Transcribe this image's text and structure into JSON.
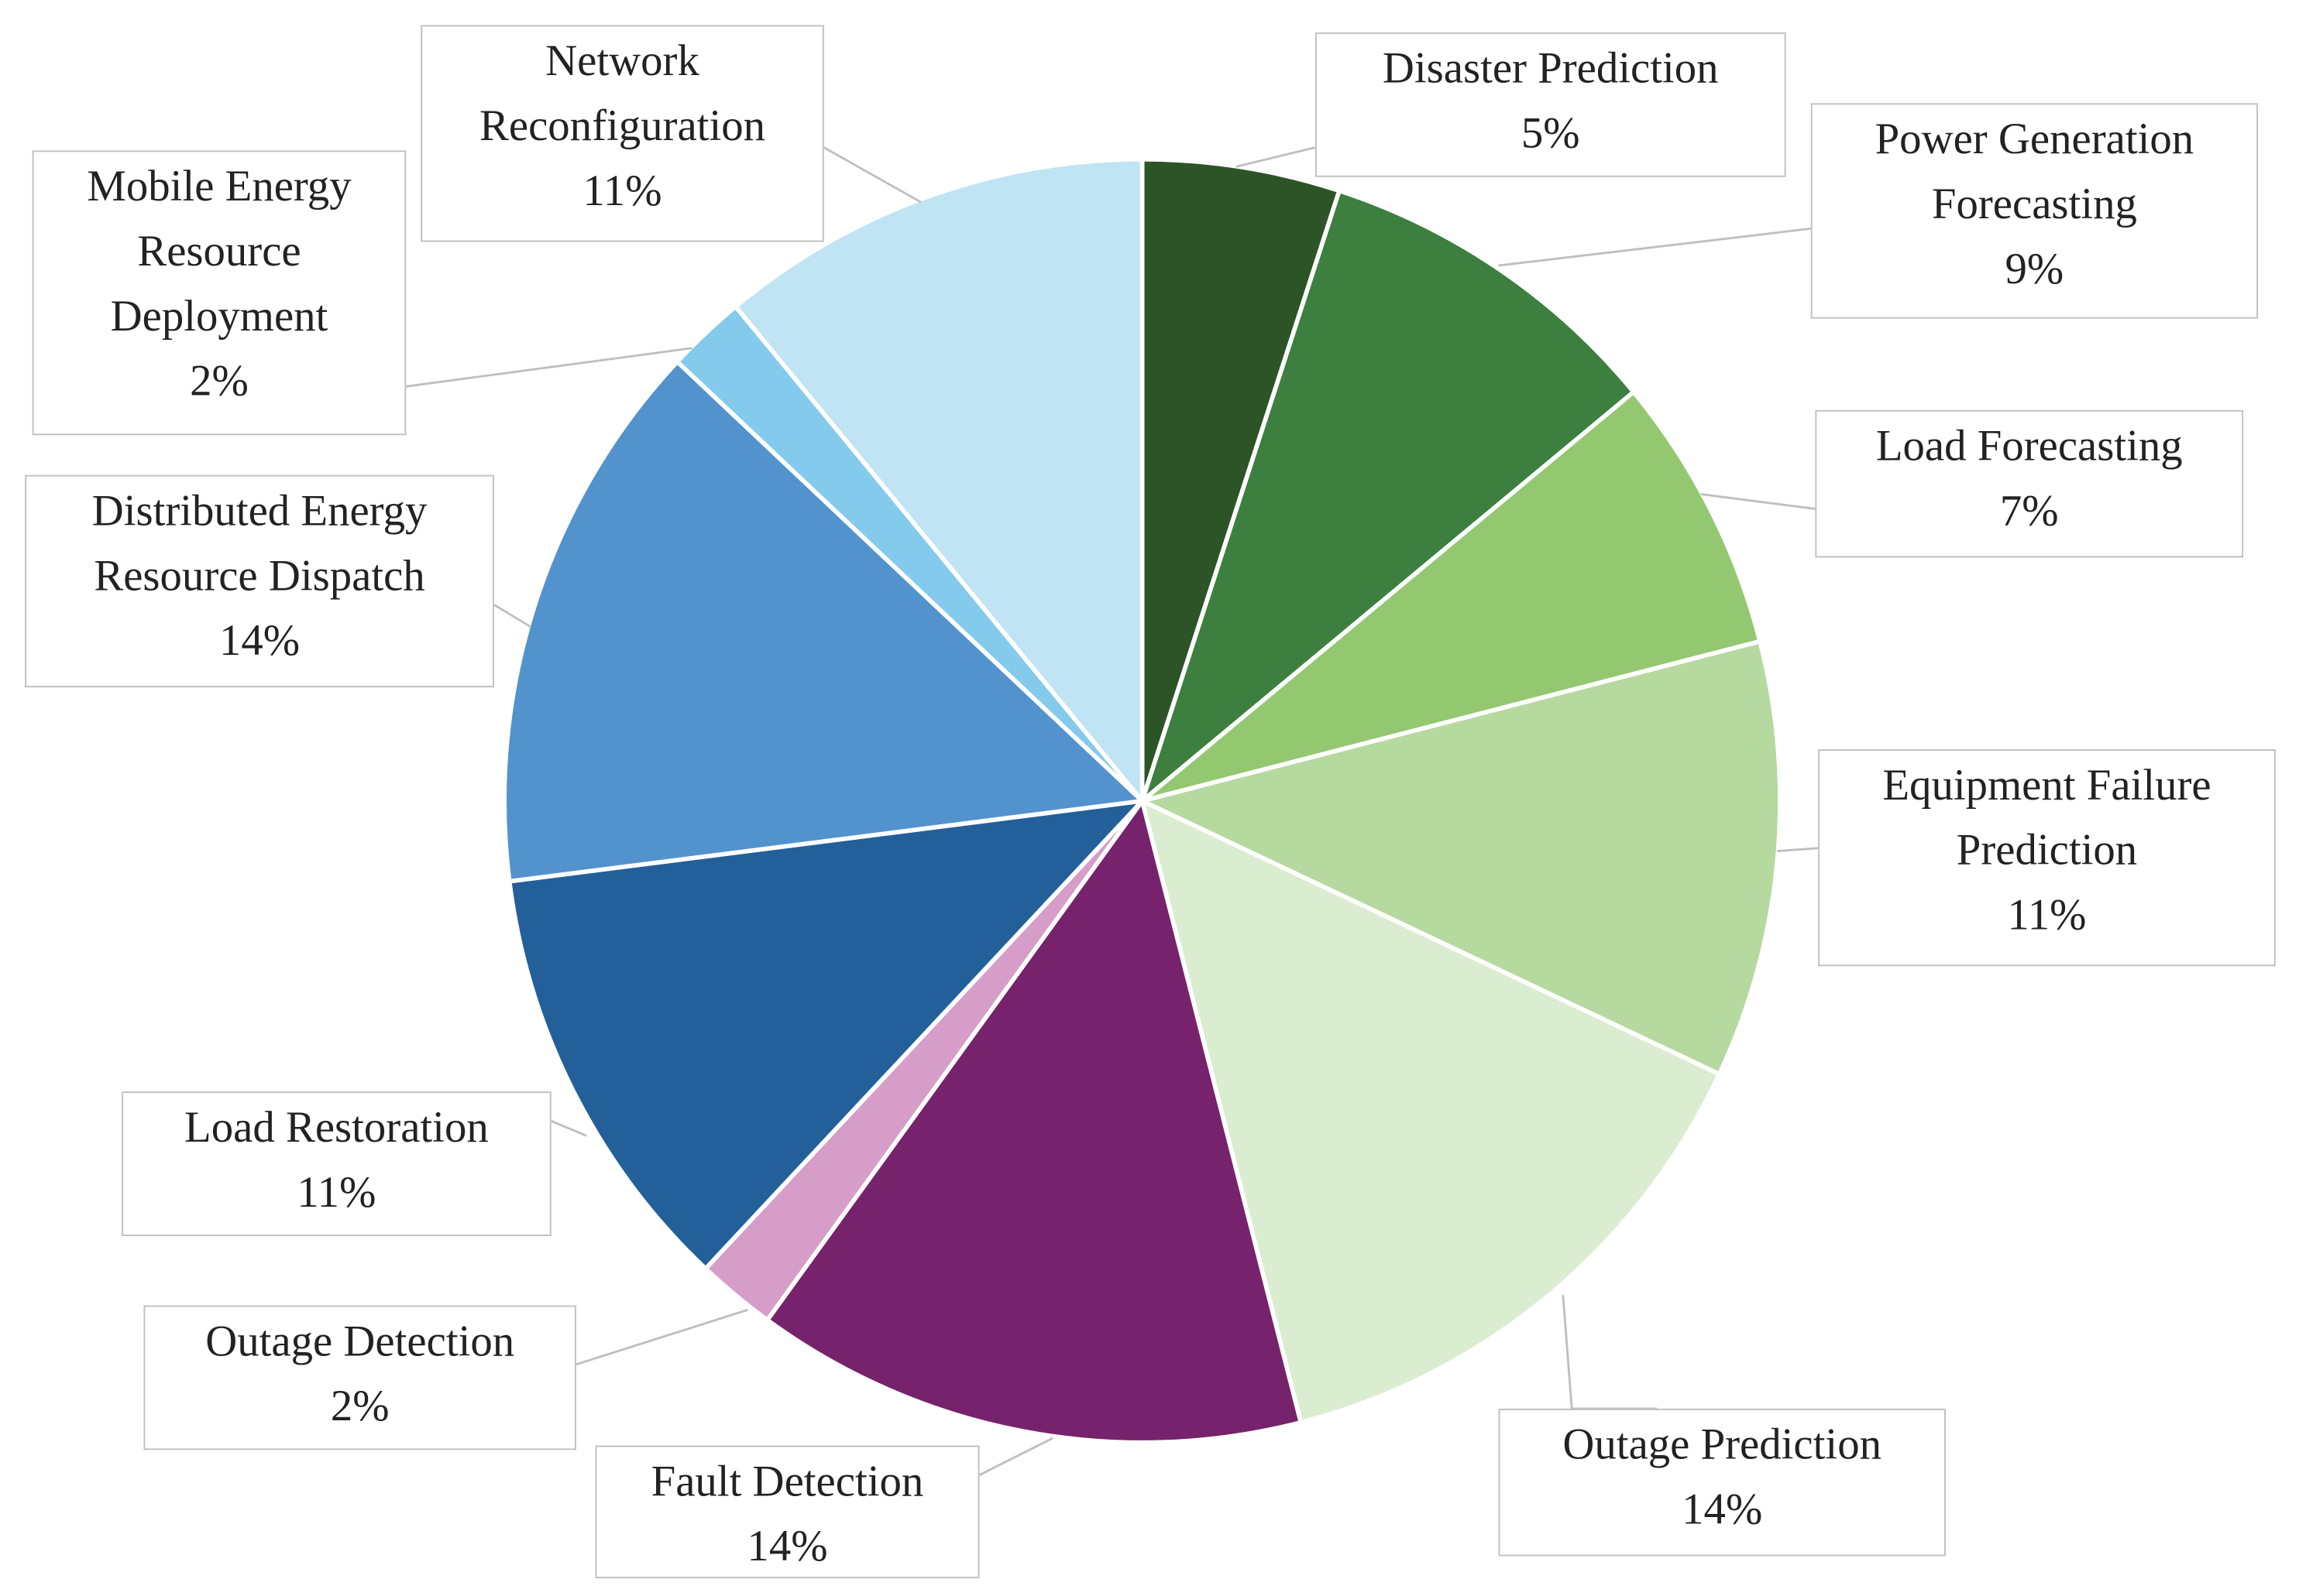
{
  "chart_data": {
    "type": "pie",
    "categories": [
      "Disaster Prediction",
      "Power Generation Forecasting",
      "Load Forecasting",
      "Equipment Failure Prediction",
      "Outage Prediction",
      "Fault Detection",
      "Outage Detection",
      "Load Restoration",
      "Distributed Energy Resource Dispatch",
      "Mobile Energy Resource Deployment",
      "Network Reconfiguration"
    ],
    "values": [
      5,
      9,
      7,
      11,
      14,
      14,
      2,
      11,
      14,
      2,
      11
    ],
    "value_labels": [
      "5%",
      "9%",
      "7%",
      "11%",
      "14%",
      "14%",
      "2%",
      "11%",
      "14%",
      "2%",
      "11%"
    ],
    "colors": [
      "#2d5427",
      "#3c7f3e",
      "#93c871",
      "#b6d99f",
      "#daedd0",
      "#77226c",
      "#d69dc8",
      "#23609a",
      "#5293cd",
      "#84caec",
      "#c1e4f4"
    ]
  }
}
